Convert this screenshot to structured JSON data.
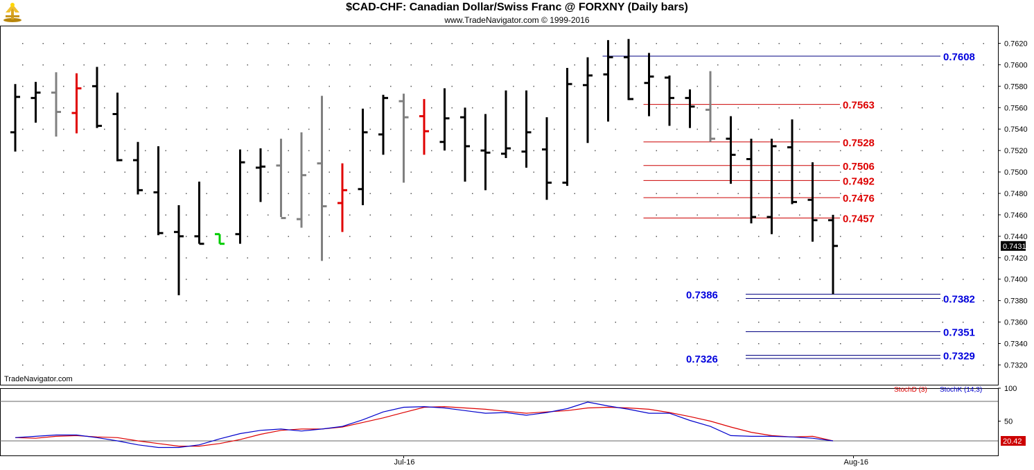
{
  "header": {
    "title": "$CAD-CHF:  Canadian Dollar/Swiss Franc @ FORXNY  (Daily bars)",
    "subtitle": "www.TradeNavigator.com © 1999-2016"
  },
  "watermark": "TradeNavigator.com",
  "colors": {
    "bar_default": "#000000",
    "bar_gray": "#808080",
    "bar_red": "#e00000",
    "bar_green": "#00cc00",
    "support_line": "#000080",
    "support_label": "#0000dd",
    "resistance_line": "#cc0000",
    "resistance_label": "#dd0000",
    "stoch_d": "#dd0000",
    "stoch_k": "#0000cc"
  },
  "chart_data": [
    {
      "type": "ohlc",
      "ylim": [
        0.7308,
        0.763
      ],
      "y_ticks": [
        "0.7620",
        "0.7600",
        "0.7580",
        "0.7560",
        "0.7540",
        "0.7520",
        "0.7500",
        "0.7480",
        "0.7460",
        "0.7440",
        "0.7420",
        "0.7400",
        "0.7380",
        "0.7360",
        "0.7340",
        "0.7320"
      ],
      "x_labels": [
        {
          "label": "Jul-16",
          "index": 19
        },
        {
          "label": "Aug-16",
          "index": 41
        }
      ],
      "last_price": "0.7431",
      "series": [
        {
          "o": 0.7537,
          "h": 0.7582,
          "l": 0.7519,
          "c": 0.757,
          "col": "default"
        },
        {
          "o": 0.7569,
          "h": 0.7584,
          "l": 0.7546,
          "c": 0.7574,
          "col": "default"
        },
        {
          "o": 0.7574,
          "h": 0.7593,
          "l": 0.7533,
          "c": 0.7556,
          "col": "gray"
        },
        {
          "o": 0.7555,
          "h": 0.7592,
          "l": 0.7536,
          "c": 0.7578,
          "col": "red"
        },
        {
          "o": 0.758,
          "h": 0.7598,
          "l": 0.7541,
          "c": 0.7543,
          "col": "default"
        },
        {
          "o": 0.7554,
          "h": 0.7574,
          "l": 0.751,
          "c": 0.7511,
          "col": "default"
        },
        {
          "o": 0.7511,
          "h": 0.7528,
          "l": 0.7479,
          "c": 0.7483,
          "col": "default"
        },
        {
          "o": 0.7481,
          "h": 0.7524,
          "l": 0.7441,
          "c": 0.7443,
          "col": "default"
        },
        {
          "o": 0.7444,
          "h": 0.7469,
          "l": 0.7385,
          "c": 0.744,
          "col": "default"
        },
        {
          "o": 0.744,
          "h": 0.7491,
          "l": 0.7433,
          "c": 0.7433,
          "col": "default"
        },
        {
          "o": 0.7442,
          "h": 0.7442,
          "l": 0.7433,
          "c": 0.7433,
          "col": "green"
        },
        {
          "o": 0.7442,
          "h": 0.7521,
          "l": 0.7433,
          "c": 0.7509,
          "col": "default"
        },
        {
          "o": 0.7504,
          "h": 0.7522,
          "l": 0.7472,
          "c": 0.7505,
          "col": "default"
        },
        {
          "o": 0.7506,
          "h": 0.7531,
          "l": 0.7458,
          "c": 0.7457,
          "col": "gray"
        },
        {
          "o": 0.7456,
          "h": 0.7537,
          "l": 0.7448,
          "c": 0.7497,
          "col": "gray"
        },
        {
          "o": 0.7508,
          "h": 0.7571,
          "l": 0.7417,
          "c": 0.7468,
          "col": "gray"
        },
        {
          "o": 0.7471,
          "h": 0.7508,
          "l": 0.7444,
          "c": 0.7483,
          "col": "red"
        },
        {
          "o": 0.7484,
          "h": 0.7559,
          "l": 0.7469,
          "c": 0.7537,
          "col": "default"
        },
        {
          "o": 0.7535,
          "h": 0.7572,
          "l": 0.7516,
          "c": 0.7569,
          "col": "default"
        },
        {
          "o": 0.7566,
          "h": 0.7573,
          "l": 0.749,
          "c": 0.7551,
          "col": "gray"
        },
        {
          "o": 0.7552,
          "h": 0.7568,
          "l": 0.7516,
          "c": 0.7538,
          "col": "red"
        },
        {
          "o": 0.7528,
          "h": 0.7578,
          "l": 0.752,
          "c": 0.755,
          "col": "default"
        },
        {
          "o": 0.7551,
          "h": 0.756,
          "l": 0.7491,
          "c": 0.7524,
          "col": "default"
        },
        {
          "o": 0.752,
          "h": 0.7554,
          "l": 0.7483,
          "c": 0.7518,
          "col": "default"
        },
        {
          "o": 0.7517,
          "h": 0.7576,
          "l": 0.7513,
          "c": 0.7522,
          "col": "default"
        },
        {
          "o": 0.7519,
          "h": 0.7576,
          "l": 0.7504,
          "c": 0.7537,
          "col": "default"
        },
        {
          "o": 0.7521,
          "h": 0.7551,
          "l": 0.7474,
          "c": 0.749,
          "col": "default"
        },
        {
          "o": 0.749,
          "h": 0.7597,
          "l": 0.7487,
          "c": 0.7582,
          "col": "default"
        },
        {
          "o": 0.7581,
          "h": 0.7607,
          "l": 0.7527,
          "c": 0.759,
          "col": "default"
        },
        {
          "o": 0.7591,
          "h": 0.7623,
          "l": 0.7547,
          "c": 0.7607,
          "col": "default"
        },
        {
          "o": 0.7607,
          "h": 0.7624,
          "l": 0.7567,
          "c": 0.7568,
          "col": "default"
        },
        {
          "o": 0.7583,
          "h": 0.7611,
          "l": 0.7552,
          "c": 0.7589,
          "col": "default"
        },
        {
          "o": 0.7588,
          "h": 0.759,
          "l": 0.7543,
          "c": 0.7569,
          "col": "default"
        },
        {
          "o": 0.7569,
          "h": 0.7577,
          "l": 0.7541,
          "c": 0.7561,
          "col": "default"
        },
        {
          "o": 0.7558,
          "h": 0.7594,
          "l": 0.7528,
          "c": 0.7531,
          "col": "gray"
        },
        {
          "o": 0.7531,
          "h": 0.7552,
          "l": 0.7489,
          "c": 0.7516,
          "col": "default"
        },
        {
          "o": 0.7512,
          "h": 0.7531,
          "l": 0.7452,
          "c": 0.7458,
          "col": "default"
        },
        {
          "o": 0.7458,
          "h": 0.7531,
          "l": 0.7442,
          "c": 0.7524,
          "col": "default"
        },
        {
          "o": 0.7523,
          "h": 0.7549,
          "l": 0.747,
          "c": 0.7472,
          "col": "default"
        },
        {
          "o": 0.7474,
          "h": 0.7509,
          "l": 0.7435,
          "c": 0.7455,
          "col": "default"
        },
        {
          "o": 0.7455,
          "h": 0.746,
          "l": 0.7386,
          "c": 0.7431,
          "col": "default"
        }
      ],
      "levels": [
        {
          "value": 0.7608,
          "label": "0.7608",
          "kind": "support",
          "from": 29,
          "side": "right"
        },
        {
          "value": 0.7563,
          "label": "0.7563",
          "kind": "resistance",
          "from": 31,
          "side": "mid"
        },
        {
          "value": 0.7528,
          "label": "0.7528",
          "kind": "resistance",
          "from": 31,
          "side": "mid"
        },
        {
          "value": 0.7506,
          "label": "0.7506",
          "kind": "resistance",
          "from": 31,
          "side": "mid"
        },
        {
          "value": 0.7492,
          "label": "0.7492",
          "kind": "resistance",
          "from": 31,
          "side": "mid"
        },
        {
          "value": 0.7476,
          "label": "0.7476",
          "kind": "resistance",
          "from": 31,
          "side": "mid"
        },
        {
          "value": 0.7457,
          "label": "0.7457",
          "kind": "resistance",
          "from": 31,
          "side": "mid"
        },
        {
          "value": 0.7386,
          "label": "0.7386",
          "kind": "support",
          "from": 36,
          "side": "left"
        },
        {
          "value": 0.7382,
          "label": "0.7382",
          "kind": "support",
          "from": 36,
          "side": "right"
        },
        {
          "value": 0.7351,
          "label": "0.7351",
          "kind": "support",
          "from": 36,
          "side": "right"
        },
        {
          "value": 0.7329,
          "label": "0.7329",
          "kind": "support",
          "from": 36,
          "side": "right"
        },
        {
          "value": 0.7326,
          "label": "0.7326",
          "kind": "support",
          "from": 36,
          "side": "left"
        }
      ]
    },
    {
      "type": "line",
      "ylim": [
        0,
        100
      ],
      "y_ticks": [
        "100",
        "50"
      ],
      "ref_lines": [
        80,
        20
      ],
      "legend": [
        "StochD (3)",
        "StochK (14,3)"
      ],
      "last_value": "20.42",
      "series": [
        {
          "name": "StochD (3)",
          "color": "stoch_d",
          "values": [
            25,
            24,
            27,
            28,
            26,
            25,
            20,
            16,
            12,
            12,
            16,
            22,
            30,
            36,
            38,
            38,
            41,
            48,
            55,
            63,
            71,
            72,
            70,
            68,
            65,
            62,
            64,
            66,
            70,
            71,
            70,
            68,
            63,
            57,
            50,
            41,
            33,
            28,
            26,
            27,
            20
          ]
        },
        {
          "name": "StochK (14,3)",
          "color": "stoch_k",
          "values": [
            25,
            27,
            29,
            29,
            25,
            20,
            14,
            10,
            10,
            14,
            23,
            31,
            36,
            38,
            35,
            38,
            42,
            52,
            64,
            71,
            72,
            70,
            66,
            62,
            63,
            59,
            63,
            69,
            79,
            73,
            68,
            62,
            62,
            51,
            42,
            28,
            27,
            27,
            26,
            24,
            20
          ]
        }
      ]
    }
  ]
}
